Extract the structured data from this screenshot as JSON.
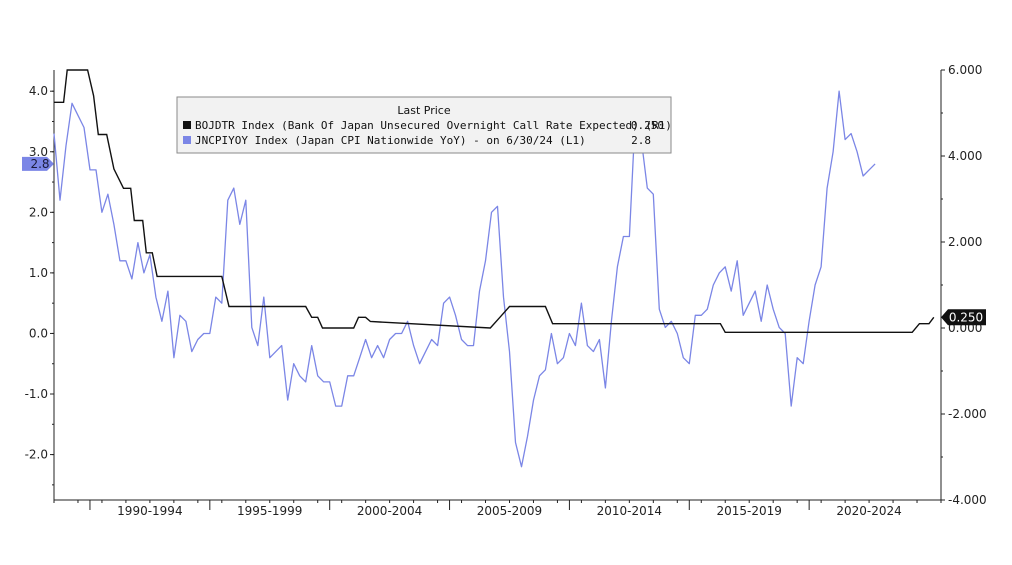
{
  "chart_data": {
    "type": "line",
    "legend": {
      "title": "Last Price",
      "entries": [
        {
          "label": "BOJDTR Index (Bank Of Japan Unsecured Overnight Call Rate Expected) (R1)",
          "last_value": "0.250",
          "color": "#111111"
        },
        {
          "label": "JNCPIYOY Index (Japan CPI Nationwide YoY) - on 6/30/24 (L1)",
          "last_value": "2.8",
          "color": "#7b86e6"
        }
      ]
    },
    "x_tick_labels": [
      "1990-1994",
      "1995-1999",
      "2000-2004",
      "2005-2009",
      "2010-2014",
      "2015-2019",
      "2020-2024"
    ],
    "xlim": [
      1988.0,
      2025.0
    ],
    "left_axis": {
      "ylim": [
        -2.75,
        4.35
      ],
      "ticks": [
        -2.0,
        -1.0,
        0.0,
        1.0,
        2.0,
        3.0,
        4.0
      ],
      "tick_labels": [
        "-2.0",
        "-1.0",
        "0.0",
        "1.0",
        "2.0",
        "3.0",
        "4.0"
      ]
    },
    "right_axis": {
      "ylim": [
        -4.0,
        6.0
      ],
      "ticks": [
        -4.0,
        -2.0,
        0.0,
        2.0,
        4.0,
        6.0
      ],
      "tick_labels": [
        "-4.000",
        "-2.000",
        "0.000",
        "2.000",
        "4.000",
        "6.000"
      ]
    },
    "last_value_tags": {
      "left": "2.8",
      "right": "0.250"
    },
    "colors": {
      "rate": "#111111",
      "cpi": "#7b86e6",
      "axis": "#222222"
    },
    "series": [
      {
        "name": "BOJDTR Index",
        "axis": "right",
        "points": [
          [
            1988.0,
            5.25
          ],
          [
            1988.4,
            5.25
          ],
          [
            1988.55,
            6.0
          ],
          [
            1989.4,
            6.0
          ],
          [
            1989.65,
            5.4
          ],
          [
            1989.85,
            4.5
          ],
          [
            1990.2,
            4.5
          ],
          [
            1990.5,
            3.7
          ],
          [
            1990.9,
            3.25
          ],
          [
            1991.2,
            3.25
          ],
          [
            1991.35,
            2.5
          ],
          [
            1991.7,
            2.5
          ],
          [
            1991.85,
            1.75
          ],
          [
            1992.1,
            1.75
          ],
          [
            1992.3,
            1.2
          ],
          [
            1995.0,
            1.2
          ],
          [
            1995.3,
            0.5
          ],
          [
            1998.5,
            0.5
          ],
          [
            1998.75,
            0.25
          ],
          [
            1999.0,
            0.25
          ],
          [
            1999.2,
            0.0
          ],
          [
            2000.5,
            0.0
          ],
          [
            2000.7,
            0.25
          ],
          [
            2001.0,
            0.25
          ],
          [
            2001.2,
            0.15
          ],
          [
            2006.2,
            0.0
          ],
          [
            2006.6,
            0.25
          ],
          [
            2007.0,
            0.5
          ],
          [
            2008.5,
            0.5
          ],
          [
            2008.8,
            0.1
          ],
          [
            2015.8,
            0.1
          ],
          [
            2016.0,
            -0.1
          ],
          [
            2023.8,
            -0.1
          ],
          [
            2024.1,
            0.1
          ],
          [
            2024.5,
            0.1
          ],
          [
            2024.7,
            0.25
          ]
        ]
      },
      {
        "name": "JNCPIYOY Index",
        "axis": "left",
        "points": [
          [
            1988.0,
            3.3
          ],
          [
            1988.25,
            2.2
          ],
          [
            1988.5,
            3.1
          ],
          [
            1988.75,
            3.8
          ],
          [
            1989.0,
            3.6
          ],
          [
            1989.25,
            3.4
          ],
          [
            1989.5,
            2.7
          ],
          [
            1989.75,
            2.7
          ],
          [
            1990.0,
            2.0
          ],
          [
            1990.25,
            2.3
          ],
          [
            1990.5,
            1.8
          ],
          [
            1990.75,
            1.2
          ],
          [
            1991.0,
            1.2
          ],
          [
            1991.25,
            0.9
          ],
          [
            1991.5,
            1.5
          ],
          [
            1991.75,
            1.0
          ],
          [
            1992.0,
            1.3
          ],
          [
            1992.25,
            0.6
          ],
          [
            1992.5,
            0.2
          ],
          [
            1992.75,
            0.7
          ],
          [
            1993.0,
            -0.4
          ],
          [
            1993.25,
            0.3
          ],
          [
            1993.5,
            0.2
          ],
          [
            1993.75,
            -0.3
          ],
          [
            1994.0,
            -0.1
          ],
          [
            1994.25,
            0.0
          ],
          [
            1994.5,
            0.0
          ],
          [
            1994.75,
            0.6
          ],
          [
            1995.0,
            0.5
          ],
          [
            1995.25,
            2.2
          ],
          [
            1995.5,
            2.4
          ],
          [
            1995.75,
            1.8
          ],
          [
            1996.0,
            2.2
          ],
          [
            1996.25,
            0.1
          ],
          [
            1996.5,
            -0.2
          ],
          [
            1996.75,
            0.6
          ],
          [
            1997.0,
            -0.4
          ],
          [
            1997.25,
            -0.3
          ],
          [
            1997.5,
            -0.2
          ],
          [
            1997.75,
            -1.1
          ],
          [
            1998.0,
            -0.5
          ],
          [
            1998.25,
            -0.7
          ],
          [
            1998.5,
            -0.8
          ],
          [
            1998.75,
            -0.2
          ],
          [
            1999.0,
            -0.7
          ],
          [
            1999.25,
            -0.8
          ],
          [
            1999.5,
            -0.8
          ],
          [
            1999.75,
            -1.2
          ],
          [
            2000.0,
            -1.2
          ],
          [
            2000.25,
            -0.7
          ],
          [
            2000.5,
            -0.7
          ],
          [
            2000.75,
            -0.4
          ],
          [
            2001.0,
            -0.1
          ],
          [
            2001.25,
            -0.4
          ],
          [
            2001.5,
            -0.2
          ],
          [
            2001.75,
            -0.4
          ],
          [
            2002.0,
            -0.1
          ],
          [
            2002.25,
            0.0
          ],
          [
            2002.5,
            0.0
          ],
          [
            2002.75,
            0.2
          ],
          [
            2003.0,
            -0.2
          ],
          [
            2003.25,
            -0.5
          ],
          [
            2003.5,
            -0.3
          ],
          [
            2003.75,
            -0.1
          ],
          [
            2004.0,
            -0.2
          ],
          [
            2004.25,
            0.5
          ],
          [
            2004.5,
            0.6
          ],
          [
            2004.75,
            0.3
          ],
          [
            2005.0,
            -0.1
          ],
          [
            2005.25,
            -0.2
          ],
          [
            2005.5,
            -0.2
          ],
          [
            2005.75,
            0.7
          ],
          [
            2006.0,
            1.2
          ],
          [
            2006.25,
            2.0
          ],
          [
            2006.5,
            2.1
          ],
          [
            2006.75,
            0.6
          ],
          [
            2007.0,
            -0.3
          ],
          [
            2007.25,
            -1.8
          ],
          [
            2007.5,
            -2.2
          ],
          [
            2007.75,
            -1.7
          ],
          [
            2008.0,
            -1.1
          ],
          [
            2008.25,
            -0.7
          ],
          [
            2008.5,
            -0.6
          ],
          [
            2008.75,
            0.0
          ],
          [
            2009.0,
            -0.5
          ],
          [
            2009.25,
            -0.4
          ],
          [
            2009.5,
            0.0
          ],
          [
            2009.75,
            -0.2
          ],
          [
            2010.0,
            0.5
          ],
          [
            2010.25,
            -0.2
          ],
          [
            2010.5,
            -0.3
          ],
          [
            2010.75,
            -0.1
          ],
          [
            2011.0,
            -0.9
          ],
          [
            2011.25,
            0.2
          ],
          [
            2011.5,
            1.1
          ],
          [
            2011.75,
            1.6
          ],
          [
            2012.0,
            1.6
          ],
          [
            2012.25,
            3.6
          ],
          [
            2012.5,
            3.2
          ],
          [
            2012.75,
            2.4
          ],
          [
            2013.0,
            2.3
          ],
          [
            2013.25,
            0.4
          ],
          [
            2013.5,
            0.1
          ],
          [
            2013.75,
            0.2
          ],
          [
            2014.0,
            0.0
          ],
          [
            2014.25,
            -0.4
          ],
          [
            2014.5,
            -0.5
          ],
          [
            2014.75,
            0.3
          ],
          [
            2015.0,
            0.3
          ],
          [
            2015.25,
            0.4
          ],
          [
            2015.5,
            0.8
          ],
          [
            2015.75,
            1.0
          ],
          [
            2016.0,
            1.1
          ],
          [
            2016.25,
            0.7
          ],
          [
            2016.5,
            1.2
          ],
          [
            2016.75,
            0.3
          ],
          [
            2017.0,
            0.5
          ],
          [
            2017.25,
            0.7
          ],
          [
            2017.5,
            0.2
          ],
          [
            2017.75,
            0.8
          ],
          [
            2018.0,
            0.4
          ],
          [
            2018.25,
            0.1
          ],
          [
            2018.5,
            0.0
          ],
          [
            2018.75,
            -1.2
          ],
          [
            2019.0,
            -0.4
          ],
          [
            2019.25,
            -0.5
          ],
          [
            2019.5,
            0.2
          ],
          [
            2019.75,
            0.8
          ],
          [
            2020.0,
            1.1
          ],
          [
            2020.25,
            2.4
          ],
          [
            2020.5,
            3.0
          ],
          [
            2020.75,
            4.0
          ],
          [
            2021.0,
            3.2
          ],
          [
            2021.25,
            3.3
          ],
          [
            2021.5,
            3.0
          ],
          [
            2021.75,
            2.6
          ],
          [
            2022.0,
            2.7
          ],
          [
            2022.25,
            2.8
          ]
        ]
      }
    ]
  }
}
